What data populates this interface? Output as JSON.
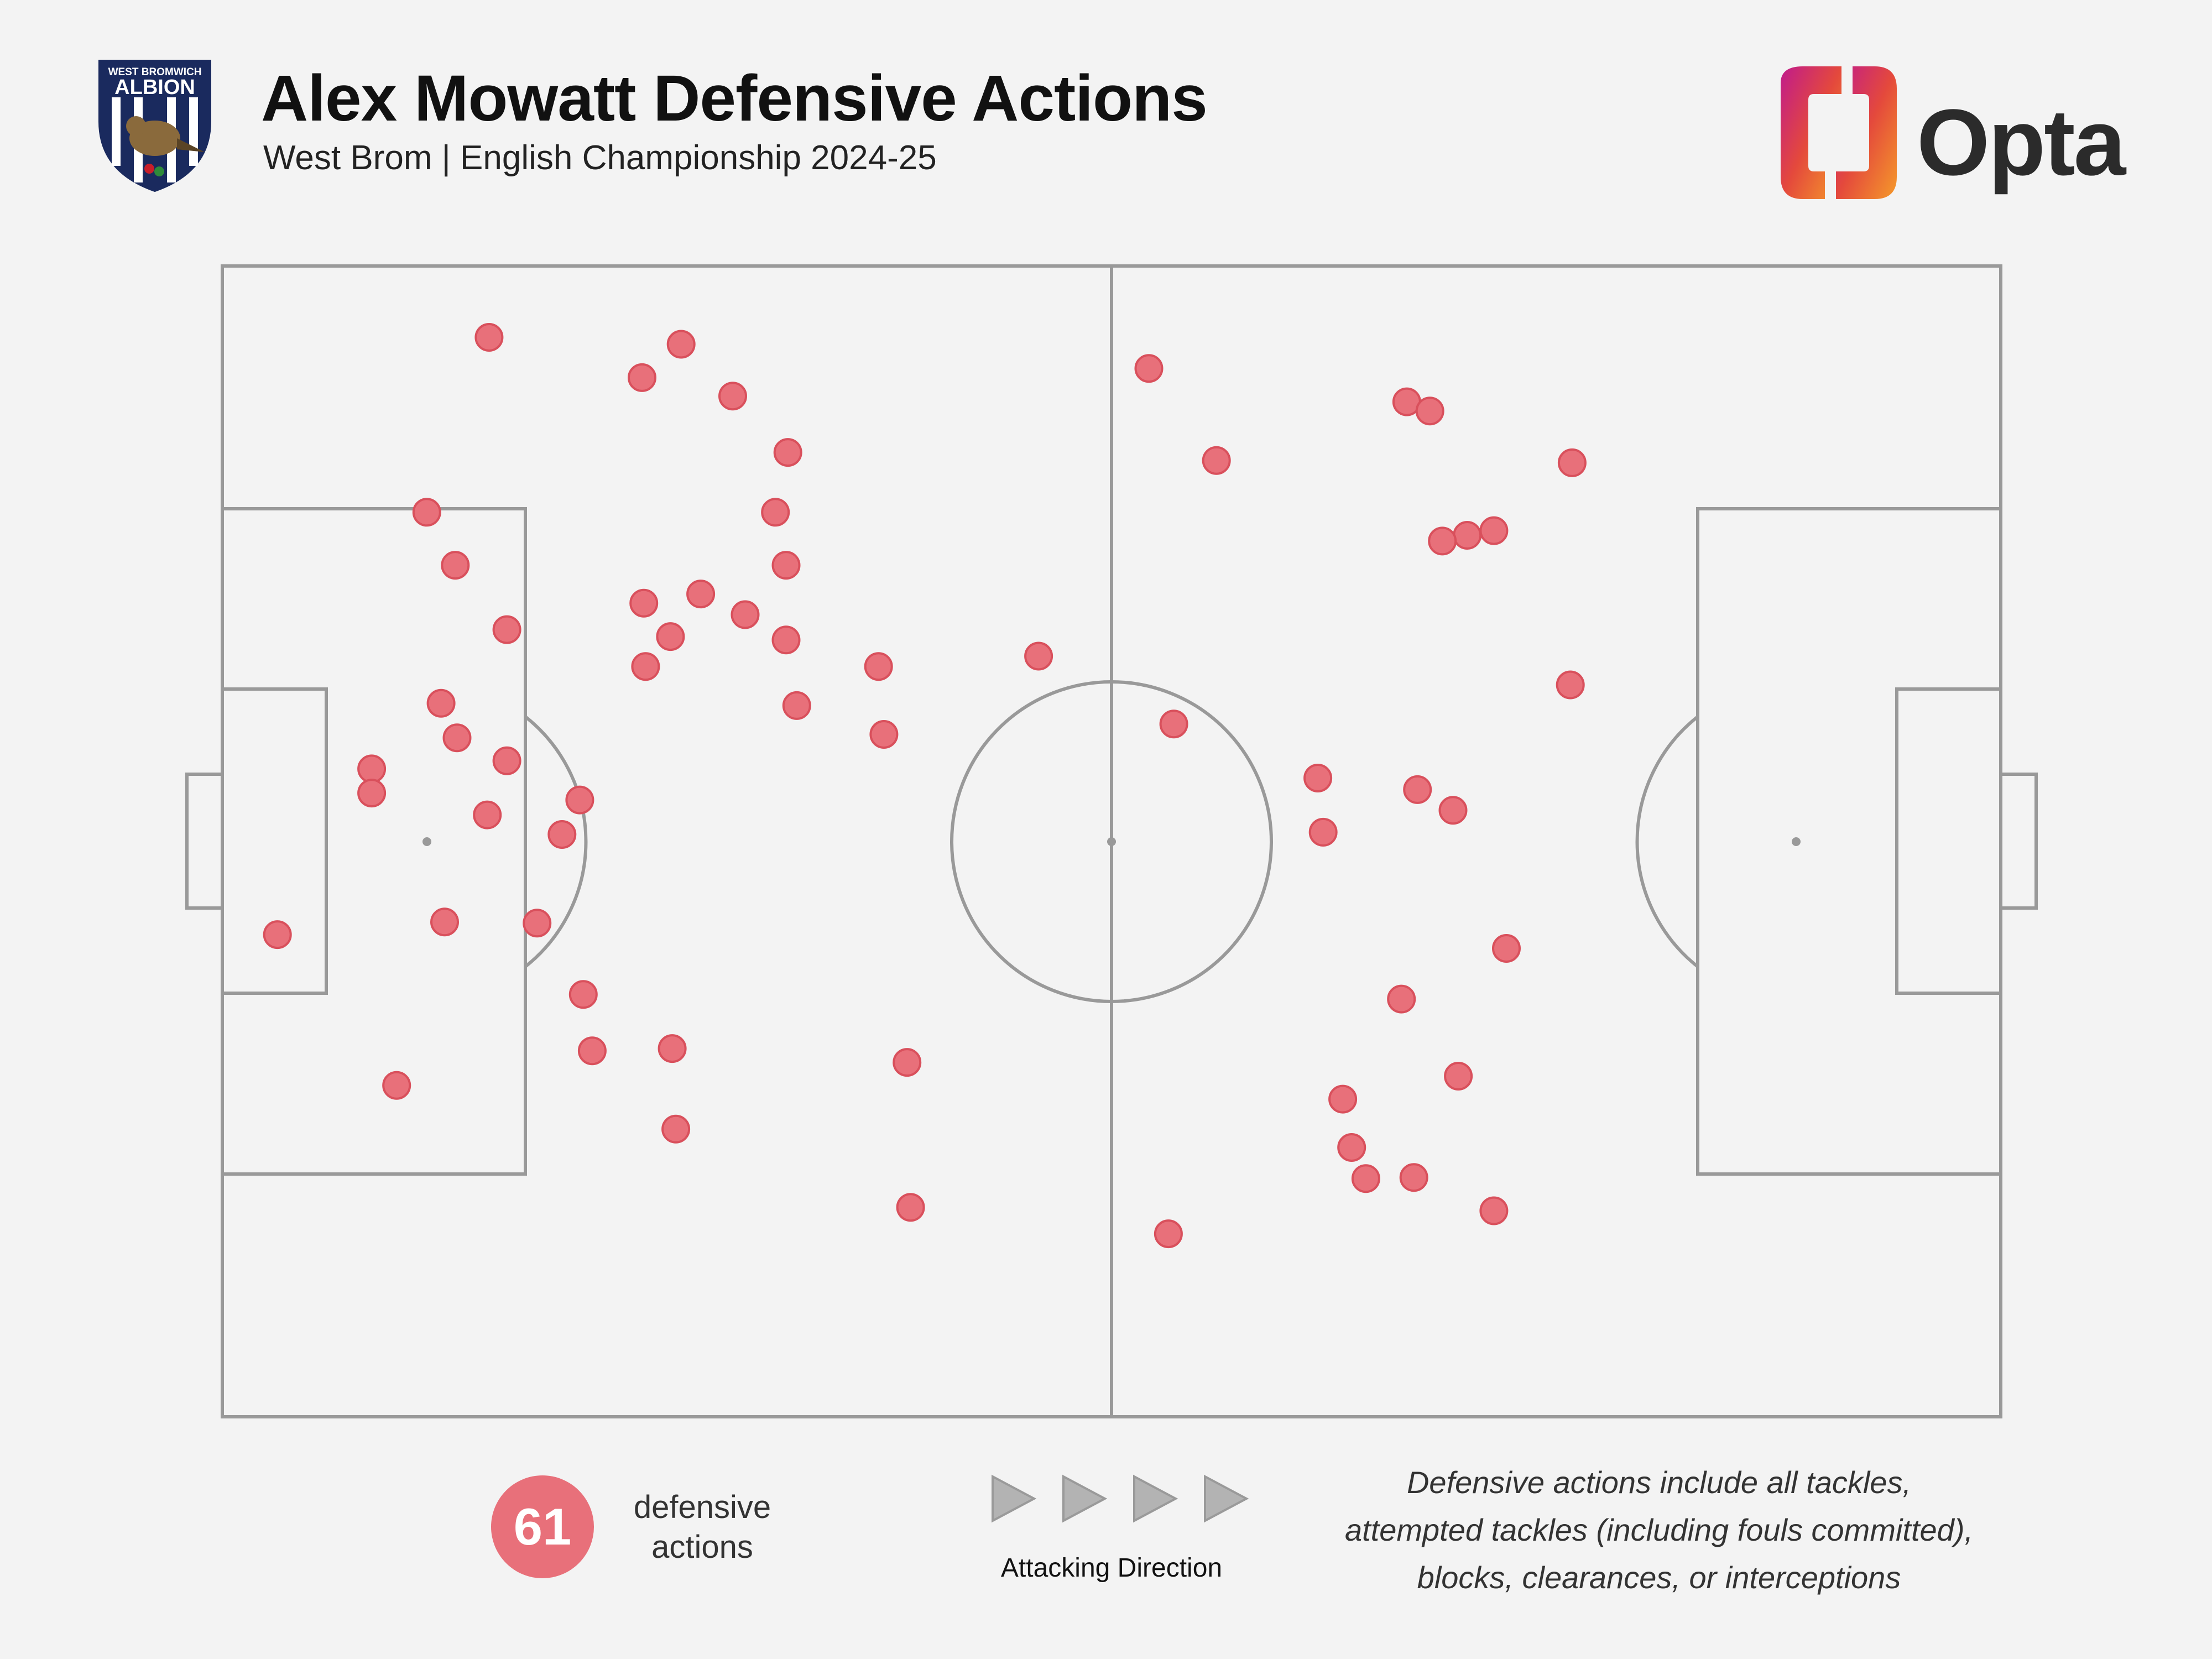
{
  "header": {
    "title": "Alex Mowatt Defensive Actions",
    "subtitle": "West Brom | English Championship 2024-25",
    "crest_text_top": "WEST BROMWICH",
    "crest_text_main": "ALBION",
    "brand": "Opta"
  },
  "summary": {
    "count": "61",
    "count_label": "defensive actions"
  },
  "direction": {
    "label": "Attacking Direction"
  },
  "note": {
    "lines": [
      "Defensive actions include all tackles,",
      "attempted tackles (including fouls committed),",
      "blocks, clearances, or interceptions"
    ]
  },
  "colors": {
    "point": "#e8707a",
    "point_stroke": "#d9505c",
    "pitch_lines": "#999999",
    "background": "#f3f3f3"
  },
  "chart_data": {
    "type": "scatter",
    "title": "Alex Mowatt Defensive Actions",
    "description_units": "pitch coordinates, x 0-100 left to right, y 0-100 top to bottom",
    "xlim": [
      0,
      100
    ],
    "ylim": [
      0,
      100
    ],
    "series": [
      {
        "values": [
          {
            "x": 15.0,
            "y": 6.2
          },
          {
            "x": 25.8,
            "y": 6.8
          },
          {
            "x": 23.6,
            "y": 9.7
          },
          {
            "x": 28.7,
            "y": 11.3
          },
          {
            "x": 31.8,
            "y": 16.2
          },
          {
            "x": 11.5,
            "y": 21.4
          },
          {
            "x": 31.1,
            "y": 21.4
          },
          {
            "x": 13.1,
            "y": 26.0
          },
          {
            "x": 31.7,
            "y": 26.0
          },
          {
            "x": 23.7,
            "y": 29.3
          },
          {
            "x": 26.9,
            "y": 28.5
          },
          {
            "x": 29.4,
            "y": 30.3
          },
          {
            "x": 25.2,
            "y": 32.2
          },
          {
            "x": 16.0,
            "y": 31.6
          },
          {
            "x": 31.7,
            "y": 32.5
          },
          {
            "x": 23.8,
            "y": 34.8
          },
          {
            "x": 36.9,
            "y": 34.8
          },
          {
            "x": 12.3,
            "y": 38.0
          },
          {
            "x": 32.3,
            "y": 38.2
          },
          {
            "x": 37.2,
            "y": 40.7
          },
          {
            "x": 13.2,
            "y": 41.0
          },
          {
            "x": 16.0,
            "y": 43.0
          },
          {
            "x": 8.4,
            "y": 43.7
          },
          {
            "x": 8.4,
            "y": 45.8
          },
          {
            "x": 20.1,
            "y": 46.4
          },
          {
            "x": 14.9,
            "y": 47.7
          },
          {
            "x": 19.1,
            "y": 49.4
          },
          {
            "x": 3.1,
            "y": 58.1
          },
          {
            "x": 12.5,
            "y": 57.0
          },
          {
            "x": 17.7,
            "y": 57.1
          },
          {
            "x": 20.3,
            "y": 63.3
          },
          {
            "x": 9.8,
            "y": 71.2
          },
          {
            "x": 20.8,
            "y": 68.2
          },
          {
            "x": 25.3,
            "y": 68.0
          },
          {
            "x": 38.5,
            "y": 69.2
          },
          {
            "x": 25.5,
            "y": 75.0
          },
          {
            "x": 38.7,
            "y": 81.8
          },
          {
            "x": 45.9,
            "y": 33.9
          },
          {
            "x": 52.1,
            "y": 8.9
          },
          {
            "x": 55.9,
            "y": 16.9
          },
          {
            "x": 66.6,
            "y": 11.8
          },
          {
            "x": 67.9,
            "y": 12.6
          },
          {
            "x": 75.9,
            "y": 17.1
          },
          {
            "x": 70.0,
            "y": 23.4
          },
          {
            "x": 71.5,
            "y": 23.0
          },
          {
            "x": 68.6,
            "y": 23.9
          },
          {
            "x": 75.8,
            "y": 36.4
          },
          {
            "x": 53.5,
            "y": 39.8
          },
          {
            "x": 61.6,
            "y": 44.5
          },
          {
            "x": 67.2,
            "y": 45.5
          },
          {
            "x": 69.2,
            "y": 47.3
          },
          {
            "x": 61.9,
            "y": 49.2
          },
          {
            "x": 72.2,
            "y": 59.3
          },
          {
            "x": 66.3,
            "y": 63.7
          },
          {
            "x": 69.5,
            "y": 70.4
          },
          {
            "x": 63.0,
            "y": 72.4
          },
          {
            "x": 63.5,
            "y": 76.6
          },
          {
            "x": 64.3,
            "y": 79.3
          },
          {
            "x": 67.0,
            "y": 79.2
          },
          {
            "x": 71.5,
            "y": 82.1
          },
          {
            "x": 53.2,
            "y": 84.1
          }
        ]
      }
    ]
  }
}
